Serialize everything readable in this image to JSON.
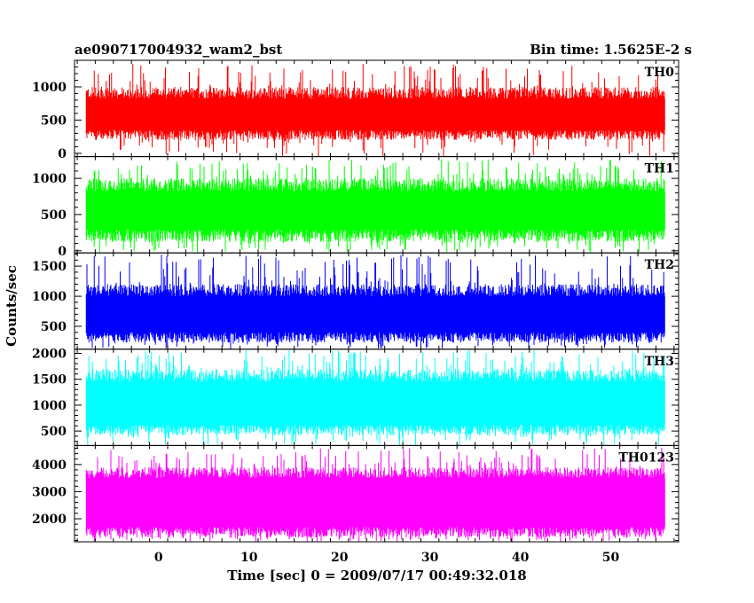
{
  "header": {
    "title": "ae090717004932_wam2_bst",
    "bin_time": "Bin time: 1.5625E-2 s"
  },
  "axes": {
    "ylabel": "Counts/sec",
    "xlabel": "Time [sec] 0 = 2009/07/17 00:49:32.018"
  },
  "chart_data": {
    "type": "line",
    "title": "ae090717004932_wam2_bst",
    "xlabel": "Time [sec] 0 = 2009/07/17 00:49:32.018",
    "ylabel": "Counts/sec",
    "xlim": [
      -9.3,
      57.5
    ],
    "x_range_data": [
      -8,
      56
    ],
    "x_ticks": [
      0,
      10,
      20,
      30,
      40,
      50
    ],
    "bin_time_s": 0.015625,
    "grid": false,
    "panels": [
      {
        "name": "TH0",
        "color": "#ff0000",
        "ylim": [
          -50,
          1400
        ],
        "y_ticks": [
          0,
          500,
          1000
        ],
        "base": [
          200,
          350
        ],
        "top": [
          820,
          1000
        ],
        "peak_max": 1350
      },
      {
        "name": "TH1",
        "color": "#00ff00",
        "ylim": [
          -30,
          1300
        ],
        "y_ticks": [
          0,
          500,
          1000
        ],
        "base": [
          120,
          300
        ],
        "top": [
          820,
          1000
        ],
        "peak_max": 1270
      },
      {
        "name": "TH2",
        "color": "#0000ff",
        "ylim": [
          120,
          1720
        ],
        "y_ticks": [
          500,
          1000,
          1500
        ],
        "base": [
          230,
          400
        ],
        "top": [
          1000,
          1200
        ],
        "peak_max": 1690
      },
      {
        "name": "TH3",
        "color": "#00ffff",
        "ylim": [
          220,
          2080
        ],
        "y_ticks": [
          500,
          1000,
          1500,
          2000
        ],
        "base": [
          420,
          620
        ],
        "top": [
          1450,
          1700
        ],
        "peak_max": 2060
      },
      {
        "name": "TH0123",
        "color": "#ff00ff",
        "ylim": [
          1150,
          4700
        ],
        "y_ticks": [
          2000,
          3000,
          4000
        ],
        "base": [
          1300,
          1700
        ],
        "top": [
          3500,
          3900
        ],
        "peak_max": 4620
      }
    ]
  }
}
